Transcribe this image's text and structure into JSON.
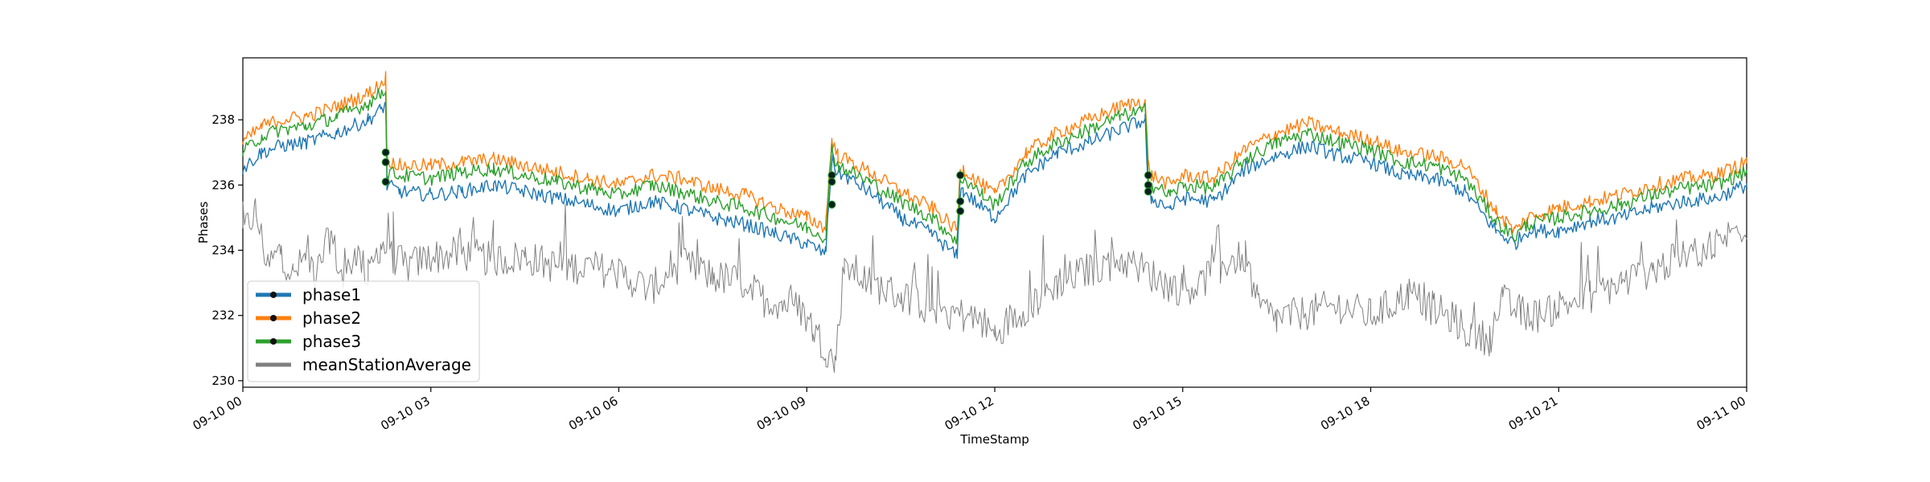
{
  "chart_data": {
    "type": "line",
    "title": "",
    "xlabel": "TimeStamp",
    "ylabel": "Phases",
    "xlim": [
      0,
      24
    ],
    "ylim": [
      229.8,
      239.9
    ],
    "x_ticks": [
      {
        "value": 0,
        "label": "09-10 00"
      },
      {
        "value": 3,
        "label": "09-10 03"
      },
      {
        "value": 6,
        "label": "09-10 06"
      },
      {
        "value": 9,
        "label": "09-10 09"
      },
      {
        "value": 12,
        "label": "09-10 12"
      },
      {
        "value": 15,
        "label": "09-10 15"
      },
      {
        "value": 18,
        "label": "09-10 18"
      },
      {
        "value": 21,
        "label": "09-10 21"
      },
      {
        "value": 24,
        "label": "09-11 00"
      }
    ],
    "y_ticks": [
      {
        "value": 230,
        "label": "230"
      },
      {
        "value": 232,
        "label": "232"
      },
      {
        "value": 234,
        "label": "234"
      },
      {
        "value": 236,
        "label": "236"
      },
      {
        "value": 238,
        "label": "238"
      }
    ],
    "legend_position": "lower-left",
    "series": [
      {
        "name": "phase1",
        "color": "#1f77b4",
        "x": [
          0,
          0.3,
          0.6,
          1.0,
          1.5,
          2.0,
          2.2,
          2.28,
          2.3,
          2.5,
          3,
          3.5,
          4,
          4.5,
          5,
          5.5,
          6,
          6.5,
          7,
          7.5,
          8,
          8.5,
          9,
          9.3,
          9.4,
          9.45,
          9.5,
          10,
          10.5,
          11.0,
          11.4,
          11.45,
          11.5,
          11.8,
          12.0,
          12.5,
          13,
          13.5,
          14,
          14.4,
          14.45,
          14.5,
          14.8,
          15.0,
          15.5,
          16,
          16.5,
          17,
          17.5,
          18,
          18.5,
          19,
          19.5,
          20.0,
          20.3,
          20.5,
          21,
          21.5,
          22,
          22.5,
          23,
          23.5,
          24
        ],
        "y": [
          236.5,
          237.0,
          237.2,
          237.3,
          237.6,
          238.0,
          238.3,
          238.5,
          236.0,
          235.8,
          235.7,
          235.8,
          236.0,
          235.8,
          235.6,
          235.4,
          235.2,
          235.5,
          235.3,
          235.0,
          234.8,
          234.5,
          234.2,
          233.9,
          236.8,
          236.5,
          236.4,
          235.8,
          235.0,
          234.5,
          233.8,
          235.8,
          235.8,
          235.3,
          235.0,
          236.3,
          237.0,
          237.3,
          237.7,
          238.0,
          235.8,
          235.6,
          235.3,
          235.6,
          235.5,
          236.5,
          236.9,
          237.2,
          236.9,
          236.7,
          236.3,
          236.2,
          235.8,
          234.6,
          234.2,
          234.6,
          234.6,
          234.9,
          235.0,
          235.3,
          235.5,
          235.6,
          236.0
        ]
      },
      {
        "name": "phase2",
        "color": "#ff7f0e",
        "x": [
          0,
          0.3,
          0.6,
          1.0,
          1.5,
          2.0,
          2.2,
          2.28,
          2.3,
          2.5,
          3,
          3.5,
          4,
          4.5,
          5,
          5.5,
          6,
          6.5,
          7,
          7.5,
          8,
          8.5,
          9,
          9.3,
          9.4,
          9.45,
          9.5,
          10,
          10.5,
          11.0,
          11.4,
          11.45,
          11.5,
          11.8,
          12.0,
          12.5,
          13,
          13.5,
          14,
          14.4,
          14.45,
          14.5,
          14.8,
          15.0,
          15.5,
          16,
          16.5,
          17,
          17.5,
          18,
          18.5,
          19,
          19.5,
          20.0,
          20.3,
          20.5,
          21,
          21.5,
          22,
          22.5,
          23,
          23.5,
          24
        ],
        "y": [
          237.3,
          237.8,
          238.0,
          238.1,
          238.4,
          238.8,
          239.1,
          239.3,
          236.8,
          236.6,
          236.6,
          236.7,
          236.8,
          236.6,
          236.4,
          236.2,
          236.0,
          236.3,
          236.2,
          235.9,
          235.7,
          235.3,
          235.0,
          234.7,
          237.4,
          237.1,
          236.9,
          236.4,
          235.8,
          235.3,
          234.6,
          236.5,
          236.5,
          236.0,
          235.7,
          237.0,
          237.6,
          238.0,
          238.4,
          238.6,
          236.6,
          236.3,
          236.0,
          236.3,
          236.2,
          237.1,
          237.6,
          237.9,
          237.6,
          237.4,
          237.0,
          236.9,
          236.6,
          235.2,
          234.6,
          235.0,
          235.3,
          235.5,
          235.7,
          236.0,
          236.2,
          236.3,
          236.7
        ]
      },
      {
        "name": "phase3",
        "color": "#2ca02c",
        "x": [
          0,
          0.3,
          0.6,
          1.0,
          1.5,
          2.0,
          2.2,
          2.28,
          2.3,
          2.5,
          3,
          3.5,
          4,
          4.5,
          5,
          5.5,
          6,
          6.5,
          7,
          7.5,
          8,
          8.5,
          9,
          9.3,
          9.4,
          9.45,
          9.5,
          10,
          10.5,
          11.0,
          11.4,
          11.45,
          11.5,
          11.8,
          12.0,
          12.5,
          13,
          13.5,
          14,
          14.4,
          14.45,
          14.5,
          14.8,
          15.0,
          15.5,
          16,
          16.5,
          17,
          17.5,
          18,
          18.5,
          19,
          19.5,
          20.0,
          20.3,
          20.5,
          21,
          21.5,
          22,
          22.5,
          23,
          23.5,
          24
        ],
        "y": [
          237.0,
          237.5,
          237.7,
          237.8,
          238.1,
          238.5,
          238.8,
          239.0,
          236.4,
          236.3,
          236.2,
          236.4,
          236.5,
          236.3,
          236.1,
          235.9,
          235.7,
          236.0,
          235.8,
          235.5,
          235.3,
          235.0,
          234.7,
          234.4,
          237.1,
          236.8,
          236.6,
          236.1,
          235.5,
          235.0,
          234.3,
          236.2,
          236.2,
          235.7,
          235.4,
          236.7,
          237.3,
          237.7,
          238.1,
          238.3,
          236.3,
          236.0,
          235.7,
          236.0,
          235.9,
          236.8,
          237.3,
          237.6,
          237.3,
          237.1,
          236.7,
          236.6,
          236.2,
          234.9,
          234.4,
          234.8,
          235.0,
          235.2,
          235.4,
          235.7,
          235.9,
          236.0,
          236.4
        ]
      },
      {
        "name": "meanStationAverage",
        "color": "#808080",
        "x": [
          0,
          0.2,
          0.4,
          0.6,
          0.8,
          1.0,
          1.2,
          1.4,
          1.6,
          1.8,
          2.0,
          2.2,
          2.4,
          2.6,
          3,
          3.5,
          4,
          4.5,
          5,
          5.5,
          6,
          6.5,
          7,
          7.5,
          8,
          8.3,
          8.6,
          8.9,
          9.1,
          9.3,
          9.45,
          9.6,
          10,
          10.5,
          11,
          11.5,
          11.8,
          12.0,
          12.3,
          12.7,
          13,
          13.5,
          14,
          14.3,
          14.7,
          15.0,
          15.3,
          15.6,
          16.0,
          16.2,
          16.5,
          17,
          17.5,
          18,
          18.3,
          18.6,
          19.0,
          19.3,
          19.6,
          19.9,
          20.1,
          20.4,
          20.7,
          21,
          21.5,
          22,
          22.5,
          23,
          23.5,
          24
        ],
        "y": [
          234.5,
          235.2,
          233.5,
          234.0,
          233.2,
          233.8,
          233.4,
          234.5,
          233.0,
          234.0,
          233.2,
          234.2,
          233.8,
          233.5,
          233.8,
          233.9,
          233.7,
          233.8,
          233.5,
          233.5,
          233.3,
          232.8,
          233.6,
          233.2,
          233.0,
          232.5,
          232.4,
          232.2,
          231.6,
          231.0,
          230.5,
          233.6,
          233.0,
          232.6,
          232.3,
          232.0,
          231.8,
          231.4,
          232.0,
          232.5,
          233.0,
          233.4,
          233.7,
          233.5,
          233.0,
          232.8,
          233.0,
          233.6,
          233.8,
          232.3,
          231.9,
          232.1,
          232.3,
          232.0,
          232.3,
          232.7,
          232.2,
          231.9,
          231.4,
          231.3,
          232.4,
          232.1,
          232.0,
          232.3,
          232.6,
          233.0,
          233.4,
          233.8,
          234.2,
          234.8
        ]
      }
    ],
    "markers": [
      {
        "x": 2.28,
        "y": 237.0
      },
      {
        "x": 2.28,
        "y": 236.7
      },
      {
        "x": 2.28,
        "y": 236.1
      },
      {
        "x": 9.4,
        "y": 236.3
      },
      {
        "x": 9.4,
        "y": 236.1
      },
      {
        "x": 9.4,
        "y": 235.4
      },
      {
        "x": 11.45,
        "y": 236.3
      },
      {
        "x": 11.45,
        "y": 235.5
      },
      {
        "x": 11.45,
        "y": 235.2
      },
      {
        "x": 14.45,
        "y": 236.3
      },
      {
        "x": 14.45,
        "y": 236.0
      },
      {
        "x": 14.45,
        "y": 235.8
      }
    ]
  }
}
